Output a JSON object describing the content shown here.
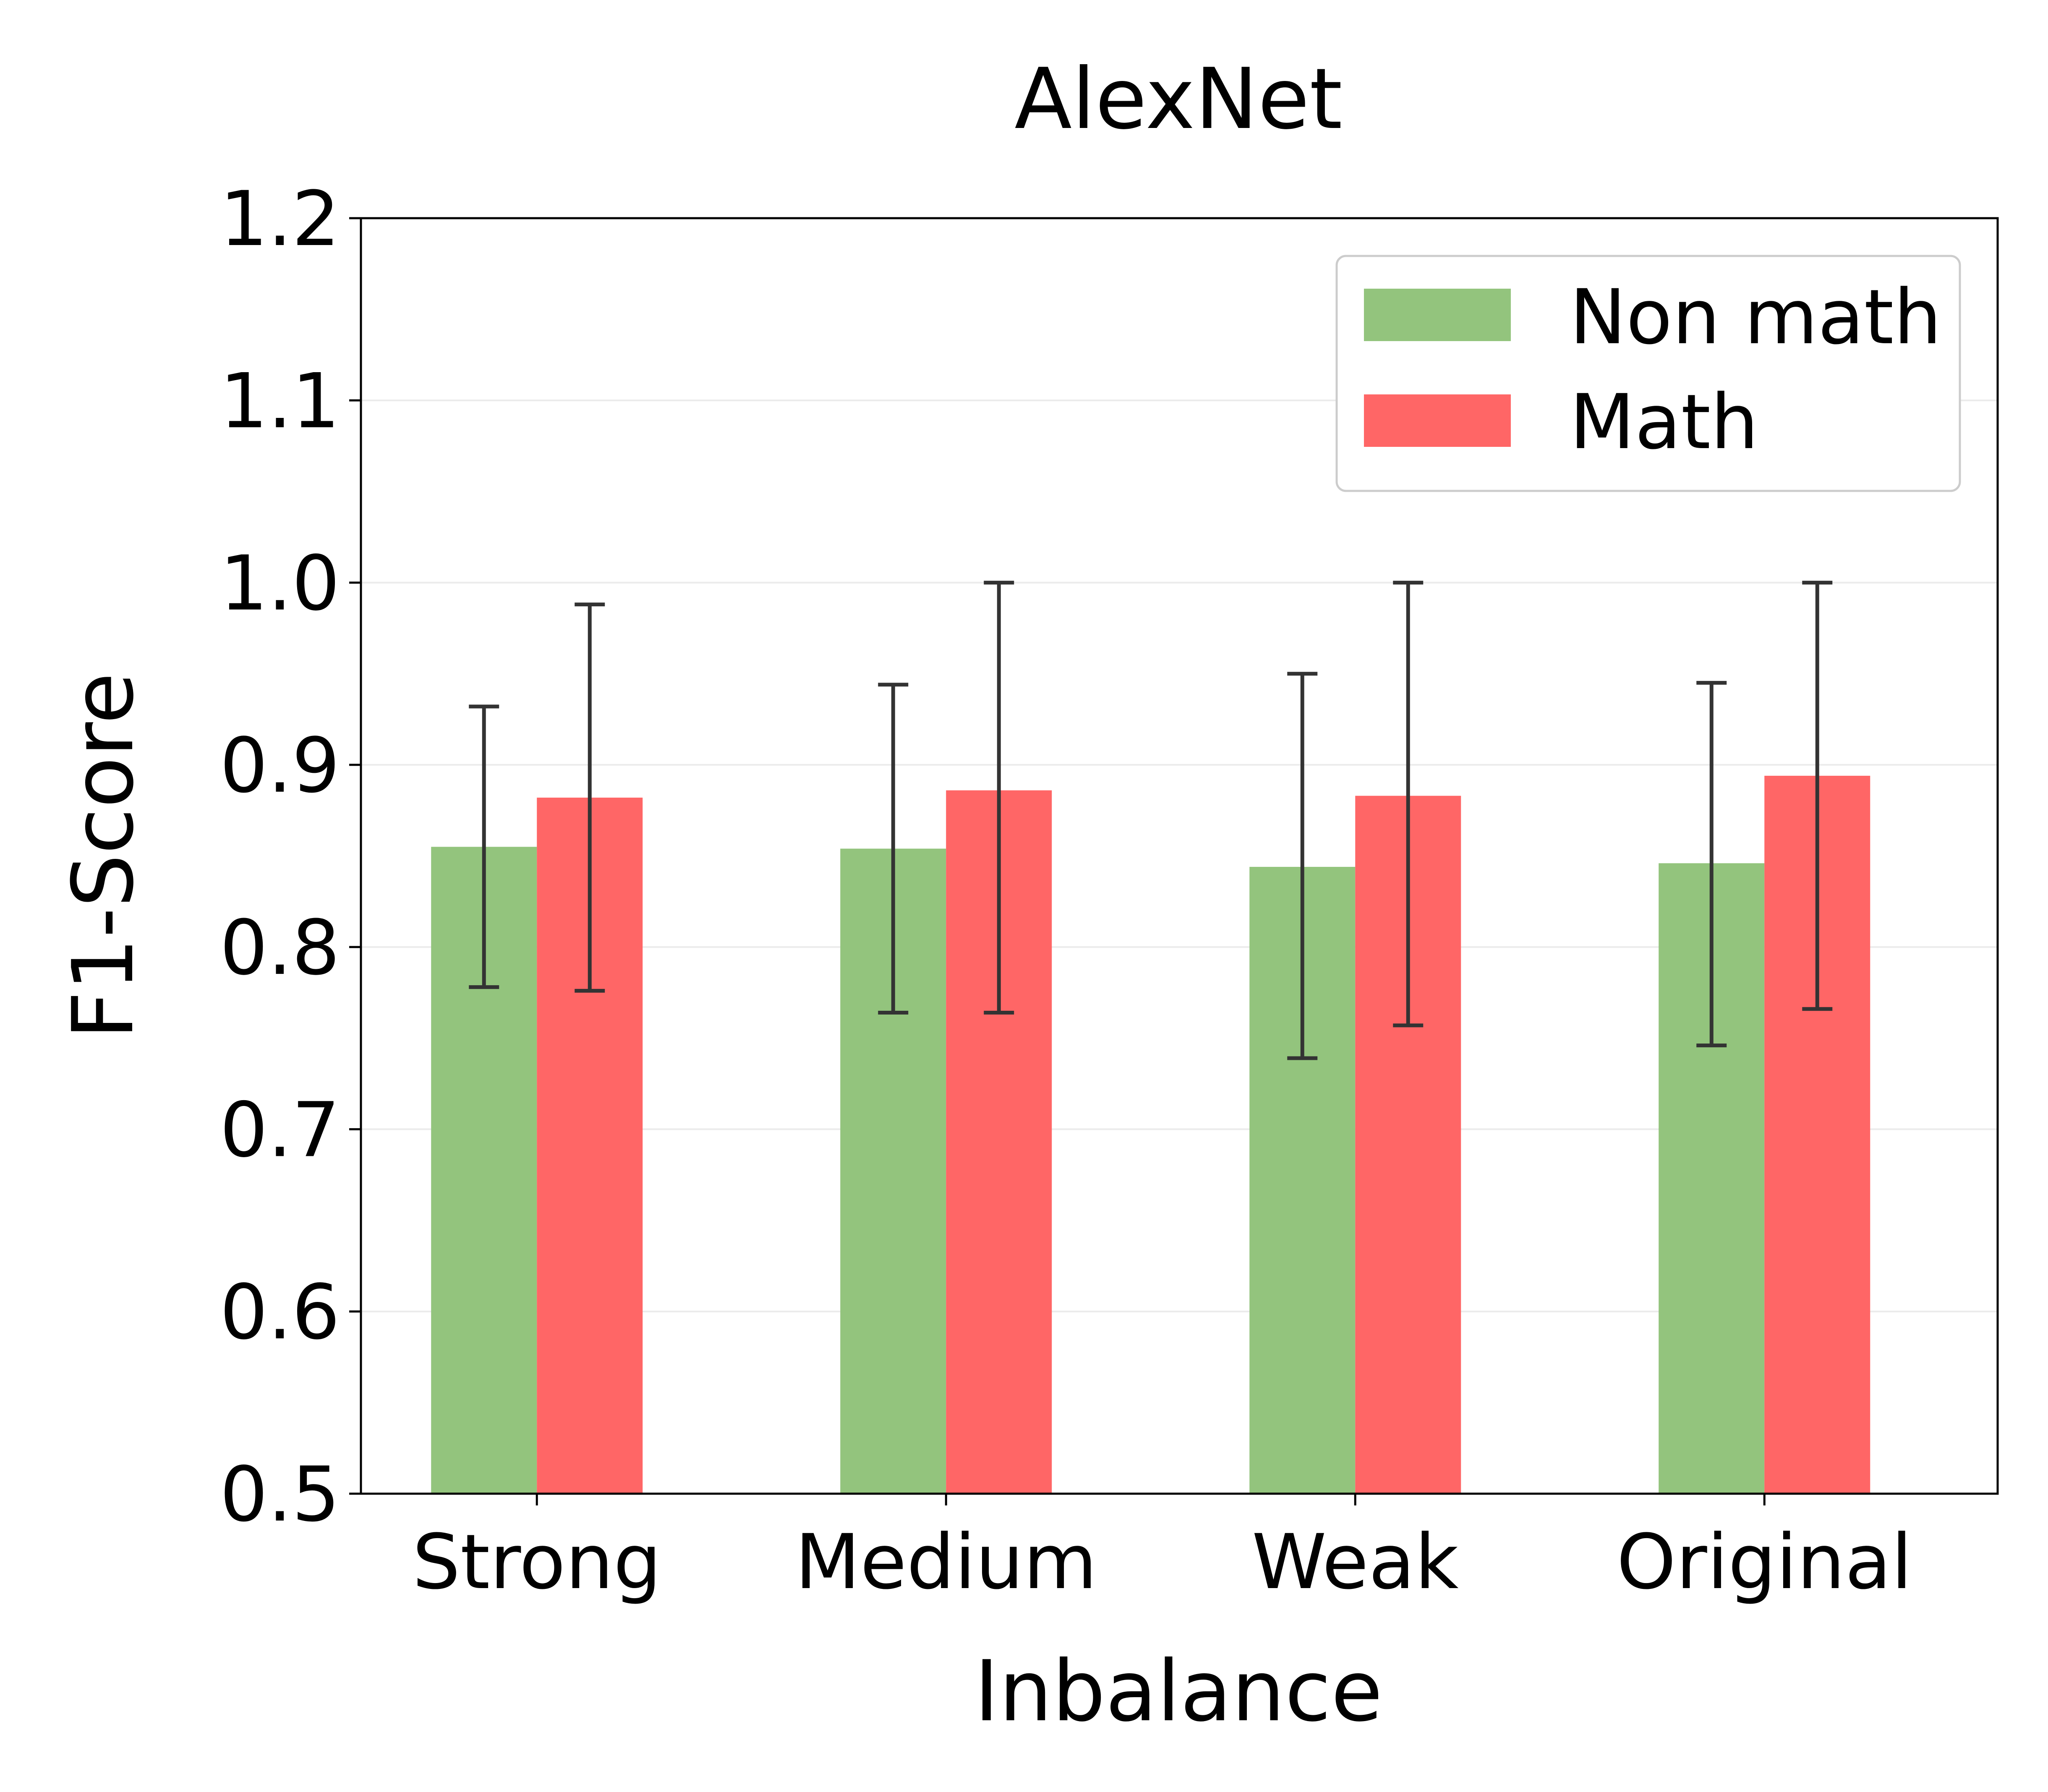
{
  "chart_data": {
    "type": "bar",
    "title": "AlexNet",
    "xlabel": "Inbalance",
    "ylabel": "F1-Score",
    "ylim": [
      0.5,
      1.2
    ],
    "yticks": [
      "0.5",
      "0.6",
      "0.7",
      "0.8",
      "0.9",
      "1.0",
      "1.1",
      "1.2"
    ],
    "categories": [
      "Strong",
      "Medium",
      "Weak",
      "Original"
    ],
    "grid": true,
    "legend_position": "top-right",
    "series": [
      {
        "name": "Non math",
        "color": "#93c47d",
        "values": [
          0.855,
          0.854,
          0.844,
          0.846
        ],
        "err_low": [
          0.778,
          0.764,
          0.739,
          0.746
        ],
        "err_high": [
          0.932,
          0.944,
          0.95,
          0.945
        ]
      },
      {
        "name": "Math",
        "color": "#ff6666",
        "values": [
          0.882,
          0.886,
          0.883,
          0.894
        ],
        "err_low": [
          0.776,
          0.764,
          0.757,
          0.766
        ],
        "err_high": [
          0.988,
          1.0,
          1.0,
          1.0
        ]
      }
    ]
  }
}
